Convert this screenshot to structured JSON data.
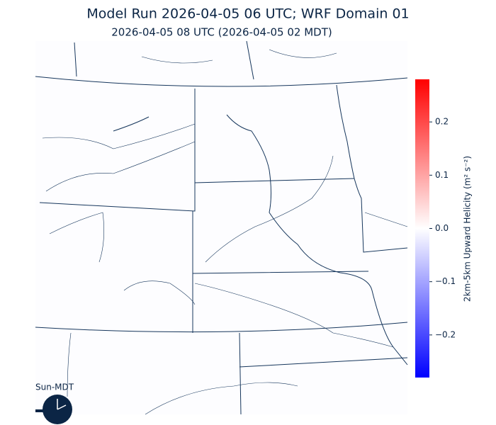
{
  "header": {
    "title": "Model Run 2026-04-05 06 UTC; WRF Domain 01",
    "subtitle": "2026-04-05 08 UTC  (2026-04-05 02 MDT)"
  },
  "colorbar": {
    "label": "2km-5km Upward Helicity (m² s⁻²)",
    "lim": [
      -0.28,
      0.28
    ],
    "ticks": [
      {
        "value": -0.2,
        "label": "−0.2"
      },
      {
        "value": -0.1,
        "label": "−0.1"
      },
      {
        "value": 0,
        "label": "0.0"
      },
      0.1,
      0.2
    ],
    "colormap": [
      "#0000ff",
      "#ffffff",
      "#ff0000"
    ]
  },
  "clock": {
    "label": "Sun-MDT"
  }
}
